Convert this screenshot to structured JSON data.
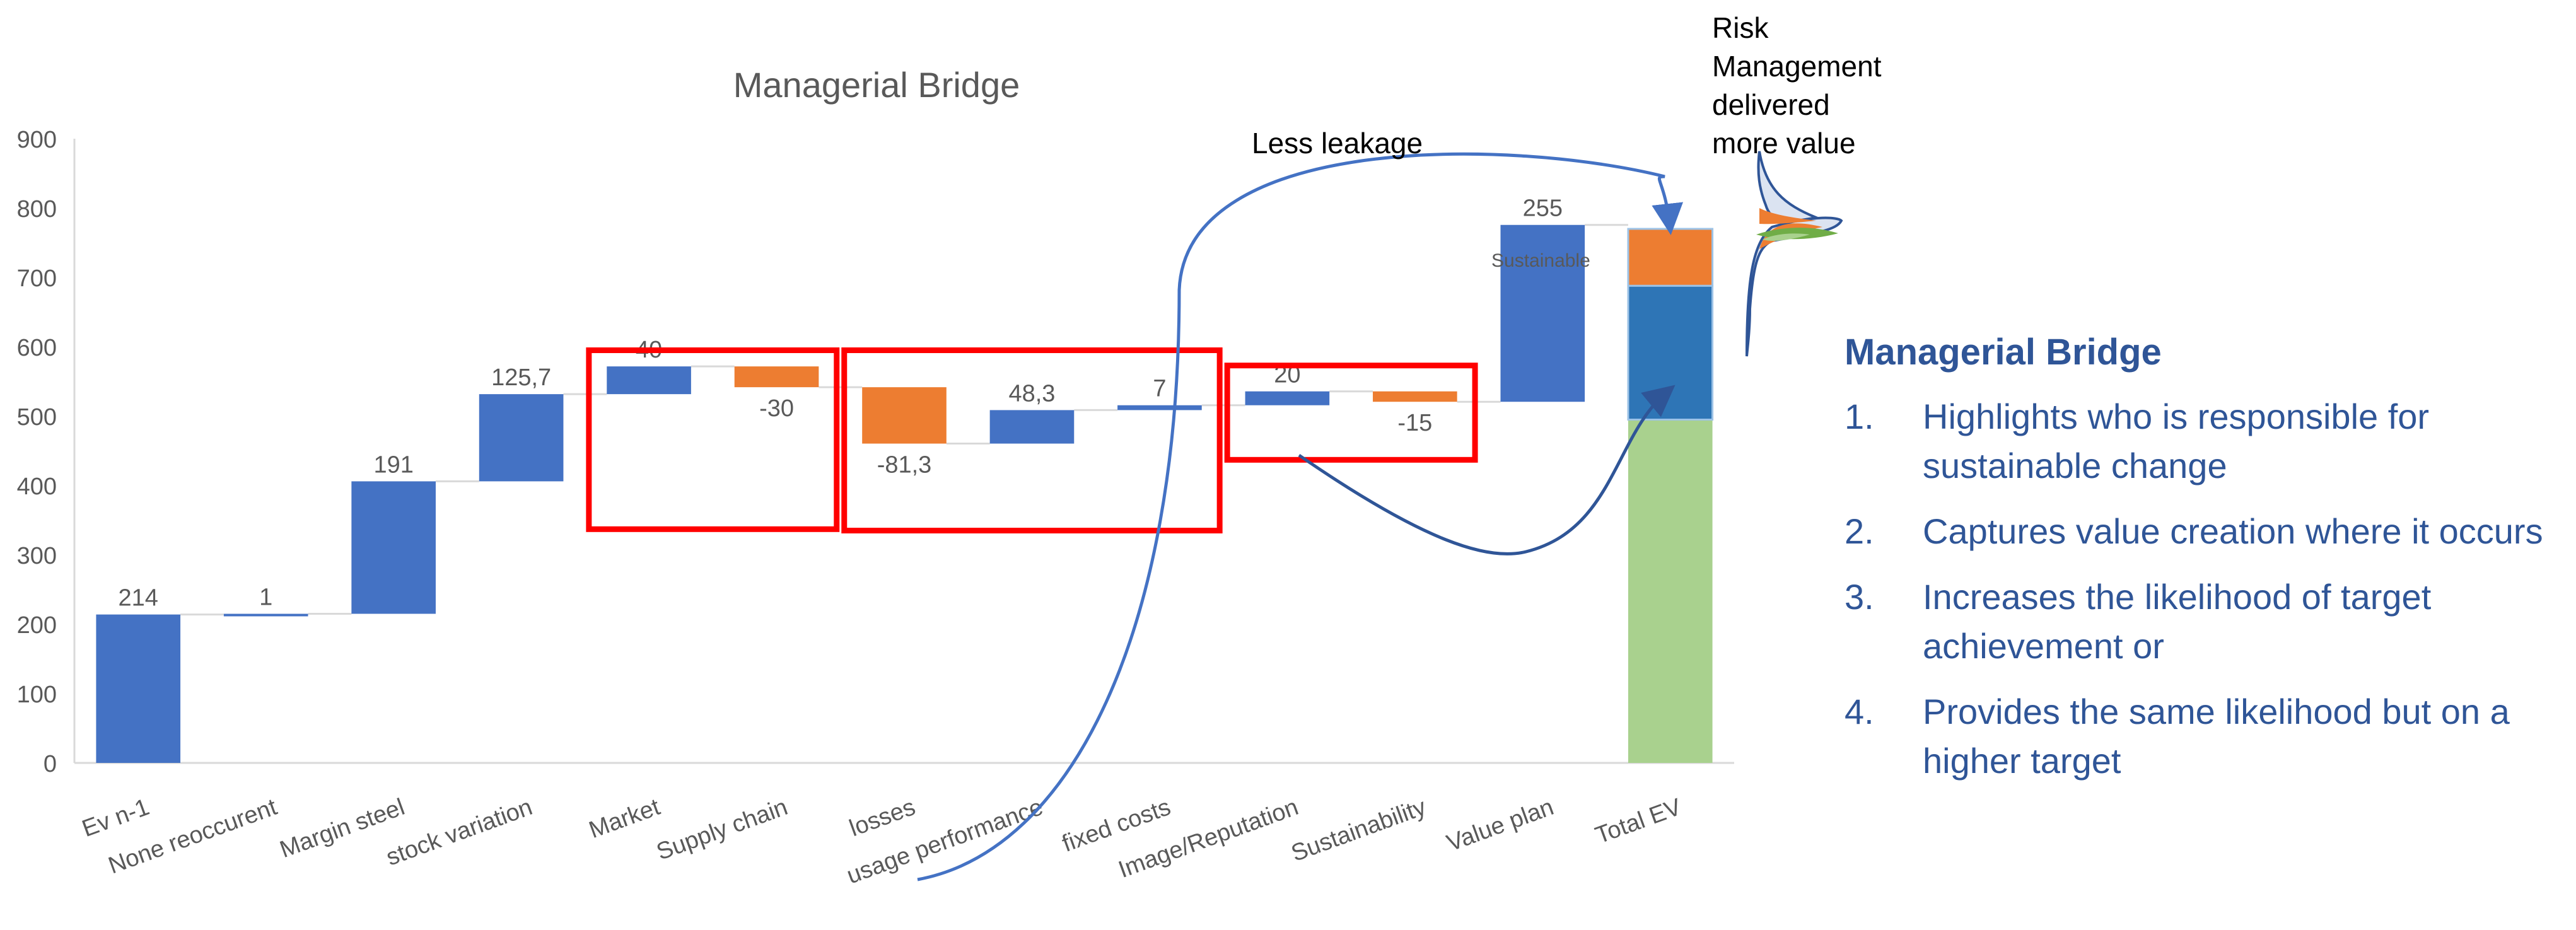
{
  "chart_data": {
    "type": "waterfall",
    "title": "Managerial Bridge",
    "ylim": [
      0,
      900
    ],
    "yticks": [
      0,
      100,
      200,
      300,
      400,
      500,
      600,
      700,
      800,
      900
    ],
    "categories": [
      "Ev n-1",
      "None reoccurent",
      "Margin steel",
      "stock variation",
      "Market",
      "Supply chain",
      "losses",
      "usage performance",
      "fixed costs",
      "Image/Reputation",
      "Sustainability",
      "Value plan",
      "Total EV"
    ],
    "values": [
      214,
      1,
      191,
      125.7,
      40,
      -30,
      -81.3,
      48.3,
      7,
      20,
      -15,
      255,
      null
    ],
    "value_labels": [
      "214",
      "1",
      "191",
      "125,7",
      "40",
      "-30",
      "-81,3",
      "48,3",
      "7",
      "20",
      "-15",
      "255",
      ""
    ],
    "total_ev_stack": [
      {
        "from": 0,
        "to": 495,
        "color": "#a9d18e"
      },
      {
        "from": 495,
        "to": 688,
        "color": "#2e75b6"
      },
      {
        "from": 688,
        "to": 770,
        "color": "#ed7d31"
      }
    ],
    "colors": {
      "increase": "#4472c4",
      "decrease": "#ed7d31",
      "gridline": "#d9d9d9",
      "connector": "#d9d9d9",
      "highlight": "#ff0000",
      "arrow": "#4472c4"
    },
    "annotations": {
      "sustainable_label": "Sustainable",
      "less_leakage": "Less leakage",
      "risk_note": [
        "Risk",
        "Management",
        "delivered",
        "more value"
      ]
    },
    "highlight_boxes": [
      {
        "from_category": "Market",
        "to_category": "Supply chain",
        "y_range": [
          337,
          595
        ]
      },
      {
        "from_category": "losses",
        "to_category": "fixed costs",
        "y_range": [
          335,
          595
        ]
      },
      {
        "from_category": "Image/Reputation",
        "to_category": "Sustainability",
        "y_range": [
          437,
          573
        ]
      }
    ]
  },
  "side_panel": {
    "title": "Managerial Bridge",
    "items": [
      {
        "num": "1.",
        "text": "Highlights who is responsible for sustainable change"
      },
      {
        "num": "2.",
        "text": "Captures value creation where it occurs"
      },
      {
        "num": "3.",
        "text": "Increases the likelihood of target achievement or"
      },
      {
        "num": "4.",
        "text": "Provides the same likelihood but on a higher target"
      }
    ]
  }
}
